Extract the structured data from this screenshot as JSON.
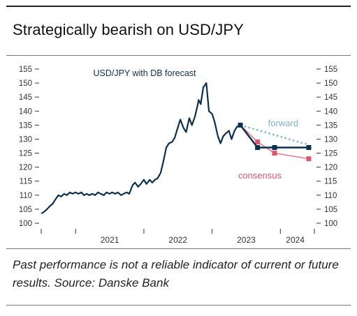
{
  "header": {
    "title": "Strategically bearish on USD/JPY"
  },
  "footnote": {
    "text": "Past performance is not a reliable indicator of current or future results. Source: Danske Bank"
  },
  "colors": {
    "usdjpy": "#0d2f4f",
    "forward": "#7fb6c2",
    "consensus": "#e0566e",
    "axis": "#333333",
    "background": "#ffffff"
  },
  "chart_data": {
    "type": "line",
    "title": "USD/JPY with DB forecast",
    "xlabel": "",
    "ylabel": "",
    "ylim": [
      100,
      155
    ],
    "xlim": [
      "2020-07-01",
      "2024-07-01"
    ],
    "yticks": [
      100,
      105,
      110,
      115,
      120,
      125,
      130,
      135,
      140,
      145,
      150,
      155
    ],
    "xticks": [
      "2021",
      "2022",
      "2023",
      "2024"
    ],
    "grid": false,
    "annotations": [
      {
        "text": "forward",
        "series": "forward"
      },
      {
        "text": "consensus",
        "series": "consensus"
      }
    ],
    "series": [
      {
        "id": "usdjpy",
        "x": [
          "2020-07-01",
          "2020-07-15",
          "2020-08-01",
          "2020-08-15",
          "2020-09-01",
          "2020-09-15",
          "2020-10-01",
          "2020-10-15",
          "2020-11-01",
          "2020-11-15",
          "2020-12-01",
          "2020-12-15",
          "2021-01-01",
          "2021-01-15",
          "2021-02-01",
          "2021-02-15",
          "2021-03-01",
          "2021-03-15",
          "2021-04-01",
          "2021-04-15",
          "2021-05-01",
          "2021-05-15",
          "2021-06-01",
          "2021-06-15",
          "2021-07-01",
          "2021-07-15",
          "2021-08-01",
          "2021-08-15",
          "2021-09-01",
          "2021-09-15",
          "2021-10-01",
          "2021-10-15",
          "2021-11-01",
          "2021-11-15",
          "2021-12-01",
          "2021-12-15",
          "2022-01-01",
          "2022-01-15",
          "2022-02-01",
          "2022-02-15",
          "2022-03-01",
          "2022-03-15",
          "2022-04-01",
          "2022-04-15",
          "2022-05-01",
          "2022-05-15",
          "2022-06-01",
          "2022-06-15",
          "2022-07-01",
          "2022-07-15",
          "2022-08-01",
          "2022-08-15",
          "2022-09-01",
          "2022-09-15",
          "2022-10-01",
          "2022-10-15",
          "2022-10-21",
          "2022-11-01",
          "2022-11-15",
          "2022-12-01",
          "2022-12-15",
          "2023-01-01",
          "2023-01-15",
          "2023-02-01",
          "2023-02-15",
          "2023-03-01",
          "2023-03-15",
          "2023-04-01",
          "2023-04-15",
          "2023-05-01",
          "2023-05-15",
          "2023-06-01"
        ],
        "y": [
          103.5,
          104.0,
          105.0,
          106.0,
          107.0,
          108.5,
          110.0,
          109.5,
          110.5,
          110.0,
          111.0,
          110.5,
          111.0,
          110.5,
          111.0,
          110.0,
          110.5,
          110.0,
          110.5,
          110.0,
          111.0,
          110.5,
          110.0,
          111.0,
          110.5,
          111.0,
          110.5,
          111.0,
          110.0,
          110.5,
          111.0,
          110.5,
          113.5,
          114.5,
          113.0,
          114.0,
          115.5,
          114.0,
          115.5,
          114.5,
          115.5,
          116.0,
          118.0,
          122.0,
          127.0,
          128.5,
          129.0,
          130.5,
          134.0,
          137.0,
          134.0,
          132.5,
          137.5,
          135.0,
          138.0,
          142.0,
          144.0,
          142.5,
          148.5,
          150.0,
          140.0,
          139.0,
          136.0,
          131.0,
          128.5,
          131.0,
          132.0,
          133.0,
          130.0,
          133.0,
          134.5,
          135.0
        ]
      },
      {
        "id": "db_forecast",
        "name": "DB forecast",
        "x": [
          "2023-06-01",
          "2023-09-01",
          "2023-12-01",
          "2024-06-01"
        ],
        "y": [
          135,
          127,
          127,
          127
        ]
      },
      {
        "id": "forward",
        "name": "forward",
        "x": [
          "2023-06-01",
          "2024-06-01"
        ],
        "y": [
          135,
          128
        ]
      },
      {
        "id": "consensus",
        "name": "consensus",
        "x": [
          "2023-06-01",
          "2023-09-01",
          "2023-12-01",
          "2024-06-01"
        ],
        "y": [
          135,
          129,
          125,
          123
        ]
      }
    ]
  }
}
